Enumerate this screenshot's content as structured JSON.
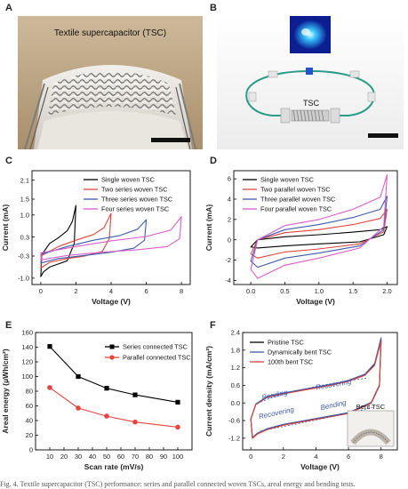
{
  "panels": {
    "A": {
      "letter": "A",
      "label": "Textile supercapacitor (TSC)"
    },
    "B": {
      "letter": "B",
      "label": "TSC"
    },
    "C": {
      "letter": "C"
    },
    "D": {
      "letter": "D"
    },
    "E": {
      "letter": "E"
    },
    "F": {
      "letter": "F",
      "inset_label": "Bent TSC"
    }
  },
  "caption": "Fig. 4. Textile supercapacitor (TSC) performance: series and parallel connected woven TSCs, areal energy and bending tests.",
  "chart_data": [
    {
      "id": "C",
      "type": "line",
      "xlabel": "Voltage (V)",
      "ylabel": "Current (mA)",
      "xlim": [
        -0.5,
        8.5
      ],
      "ylim": [
        -1.2,
        2.4
      ],
      "xticks": [
        0,
        2,
        4,
        6,
        8
      ],
      "xtick_labels": [
        "0",
        "2",
        "4",
        "6",
        "8"
      ],
      "yticks": [
        -1.0,
        -0.3,
        0.3,
        1.0,
        1.5,
        2.1
      ],
      "ytick_labels": [
        "-1.0",
        "-0.3",
        "0.3",
        "1.0",
        "1.5",
        "2.1"
      ],
      "legend_position": "top-right",
      "series": [
        {
          "name": "Single woven TSC",
          "color": "#000000",
          "x": [
            0,
            0.5,
            1.0,
            1.5,
            1.8,
            2.0,
            1.9,
            1.5,
            1.0,
            0.5,
            0.15,
            0,
            0.05
          ],
          "y": [
            -0.3,
            0.1,
            0.28,
            0.5,
            0.8,
            1.3,
            0.1,
            -0.45,
            -0.55,
            -0.65,
            -0.8,
            -0.95,
            -0.3
          ]
        },
        {
          "name": "Two series woven TSC",
          "color": "#e0443c",
          "x": [
            0,
            1,
            2,
            3,
            3.6,
            4.0,
            3.9,
            3.5,
            2.5,
            1.5,
            0.5,
            0,
            0.05
          ],
          "y": [
            -0.3,
            0.0,
            0.2,
            0.38,
            0.6,
            1.05,
            0.25,
            -0.15,
            -0.3,
            -0.38,
            -0.5,
            -0.68,
            -0.3
          ]
        },
        {
          "name": "Three series woven TSC",
          "color": "#3e5aa8",
          "x": [
            0,
            1.5,
            3,
            4.5,
            5.5,
            6.0,
            5.9,
            5.3,
            4,
            2.5,
            1,
            0,
            0.05
          ],
          "y": [
            -0.25,
            0.0,
            0.2,
            0.35,
            0.55,
            0.85,
            0.2,
            -0.05,
            -0.18,
            -0.28,
            -0.38,
            -0.52,
            -0.25
          ]
        },
        {
          "name": "Four series woven TSC",
          "color": "#d95fc8",
          "x": [
            0,
            2,
            4,
            6,
            7.4,
            8.0,
            7.9,
            7.2,
            5.5,
            3.5,
            1.5,
            0,
            0.05
          ],
          "y": [
            -0.2,
            0.0,
            0.18,
            0.32,
            0.52,
            0.95,
            0.25,
            0.0,
            -0.1,
            -0.18,
            -0.28,
            -0.42,
            -0.2
          ]
        }
      ]
    },
    {
      "id": "D",
      "type": "line",
      "xlabel": "Voltage (V)",
      "ylabel": "Current (mA)",
      "xlim": [
        -0.25,
        2.15
      ],
      "ylim": [
        -4.4,
        6.8
      ],
      "xticks": [
        0.0,
        0.5,
        1.0,
        1.5,
        2.0
      ],
      "xtick_labels": [
        "0.0",
        "0.5",
        "1.0",
        "1.5",
        "2.0"
      ],
      "yticks": [
        -4,
        -2,
        0,
        2,
        4,
        6
      ],
      "ytick_labels": [
        "-4",
        "-2",
        "0",
        "2",
        "4",
        "6"
      ],
      "legend_position": "top-left",
      "series": [
        {
          "name": "Single woven TSC",
          "color": "#000000",
          "x": [
            0,
            0.1,
            0.5,
            1.0,
            1.5,
            1.9,
            2.0,
            1.95,
            1.6,
            1.0,
            0.5,
            0.1,
            0
          ],
          "y": [
            -0.7,
            0.0,
            0.3,
            0.5,
            0.75,
            1.0,
            1.3,
            0.5,
            -0.2,
            -0.4,
            -0.6,
            -0.8,
            -0.7
          ]
        },
        {
          "name": "Two parallel woven TSC",
          "color": "#e0443c",
          "x": [
            0,
            0.1,
            0.5,
            1.0,
            1.5,
            1.9,
            2.0,
            1.95,
            1.6,
            1.0,
            0.5,
            0.1,
            0
          ],
          "y": [
            -1.4,
            0.0,
            0.7,
            1.0,
            1.5,
            2.1,
            3.0,
            0.8,
            -0.4,
            -0.9,
            -1.2,
            -1.8,
            -1.4
          ]
        },
        {
          "name": "Three parallel woven TSC",
          "color": "#3e5aa8",
          "x": [
            0,
            0.1,
            0.5,
            1.0,
            1.5,
            1.9,
            2.0,
            1.95,
            1.6,
            1.0,
            0.5,
            0.1,
            0
          ],
          "y": [
            -2.1,
            0.0,
            1.0,
            1.5,
            2.2,
            3.0,
            4.3,
            1.0,
            -0.6,
            -1.3,
            -1.8,
            -2.7,
            -2.1
          ]
        },
        {
          "name": "Four parallel woven TSC",
          "color": "#d95fc8",
          "x": [
            0,
            0.1,
            0.5,
            1.0,
            1.5,
            1.9,
            2.0,
            1.95,
            1.6,
            1.0,
            0.5,
            0.1,
            0
          ],
          "y": [
            -2.9,
            0.0,
            1.4,
            2.0,
            3.0,
            4.2,
            6.4,
            1.3,
            -0.8,
            -1.8,
            -2.5,
            -3.8,
            -2.9
          ]
        }
      ]
    },
    {
      "id": "E",
      "type": "line",
      "xlabel": "Scan rate (mV/s)",
      "ylabel": "Areal energy (μWh/cm²)",
      "xlim": [
        0,
        110
      ],
      "ylim": [
        0,
        160
      ],
      "xticks": [
        10,
        20,
        30,
        40,
        50,
        60,
        70,
        80,
        90,
        100
      ],
      "xtick_labels": [
        "10",
        "20",
        "30",
        "40",
        "50",
        "60",
        "70",
        "80",
        "90",
        "100"
      ],
      "yticks": [
        0,
        20,
        40,
        60,
        80,
        100,
        120,
        140,
        160
      ],
      "ytick_labels": [
        "0",
        "20",
        "40",
        "60",
        "80",
        "100",
        "120",
        "140",
        "160"
      ],
      "legend_position": "top-right",
      "series": [
        {
          "name": "Series connected TSC",
          "color": "#000000",
          "marker": "square",
          "x": [
            10,
            30,
            50,
            70,
            100
          ],
          "y": [
            141,
            100,
            84,
            75,
            65
          ]
        },
        {
          "name": "Parallel connected TSC",
          "color": "#e8453c",
          "marker": "circle",
          "x": [
            10,
            30,
            50,
            70,
            100
          ],
          "y": [
            85,
            57,
            46,
            38,
            31
          ]
        }
      ]
    },
    {
      "id": "F",
      "type": "line",
      "xlabel": "Voltage (V)",
      "ylabel": "Current density (mA/cm²)",
      "xlim": [
        -0.5,
        9
      ],
      "ylim": [
        -1.6,
        2.4
      ],
      "xticks": [
        0,
        2,
        4,
        6,
        8
      ],
      "xtick_labels": [
        "0",
        "2",
        "4",
        "6",
        "8"
      ],
      "yticks": [
        -1.2,
        -0.6,
        0.0,
        0.6,
        1.2,
        1.8,
        2.4
      ],
      "ytick_labels": [
        "-1.2",
        "-0.6",
        "0.0",
        "0.6",
        "1.2",
        "1.8",
        "2.4"
      ],
      "legend_position": "top-left",
      "annotations": [
        "Bending",
        "Recovering",
        "Recovering",
        "Bending"
      ],
      "series": [
        {
          "name": "Pristine TSC",
          "color": "#000000",
          "x": [
            0,
            0.3,
            1,
            2,
            3,
            4,
            5,
            6,
            7,
            7.6,
            8.0,
            7.9,
            7.4,
            6,
            5,
            4,
            3,
            2,
            1,
            0.4,
            0.1,
            0
          ],
          "y": [
            -0.55,
            -0.05,
            0.2,
            0.32,
            0.42,
            0.52,
            0.62,
            0.75,
            0.95,
            1.3,
            2.15,
            0.6,
            0.0,
            -0.35,
            -0.45,
            -0.55,
            -0.65,
            -0.75,
            -0.9,
            -1.05,
            -1.2,
            -0.55
          ]
        },
        {
          "name": "Dynamically bent TSC",
          "color": "#3e5aa8",
          "x": [
            0,
            0.3,
            1,
            2,
            3,
            4,
            5,
            6,
            7,
            7.6,
            8.0,
            7.9,
            7.4,
            6,
            5,
            4,
            3,
            2,
            1,
            0.4,
            0.1,
            0
          ],
          "y": [
            -0.55,
            -0.04,
            0.22,
            0.34,
            0.44,
            0.54,
            0.64,
            0.77,
            0.98,
            1.34,
            2.22,
            0.62,
            0.02,
            -0.33,
            -0.43,
            -0.53,
            -0.63,
            -0.73,
            -0.88,
            -1.03,
            -1.18,
            -0.55
          ]
        },
        {
          "name": "100th bent TSC",
          "color": "#e0443c",
          "x": [
            0,
            0.3,
            1,
            2,
            3,
            4,
            5,
            6,
            7,
            7.6,
            8.0,
            7.9,
            7.4,
            6,
            5,
            4,
            3,
            2,
            1,
            0.4,
            0.1,
            0
          ],
          "y": [
            -0.56,
            -0.06,
            0.19,
            0.31,
            0.41,
            0.51,
            0.61,
            0.74,
            0.94,
            1.28,
            2.1,
            0.58,
            -0.01,
            -0.36,
            -0.46,
            -0.56,
            -0.66,
            -0.76,
            -0.91,
            -1.06,
            -1.21,
            -0.56
          ]
        }
      ]
    }
  ]
}
